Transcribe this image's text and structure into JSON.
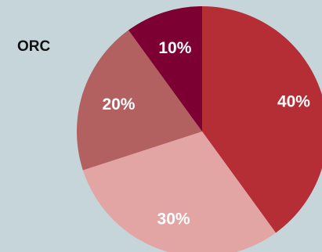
{
  "chart_data": {
    "type": "pie",
    "title": "ORC",
    "start_angle_deg": 0,
    "direction": "clockwise",
    "slices": [
      {
        "label": "40%",
        "value": 40,
        "color": "#b52e35"
      },
      {
        "label": "30%",
        "value": 30,
        "color": "#e3a4a4"
      },
      {
        "label": "20%",
        "value": 20,
        "color": "#b26060"
      },
      {
        "label": "10%",
        "value": 10,
        "color": "#7d0033"
      }
    ]
  }
}
